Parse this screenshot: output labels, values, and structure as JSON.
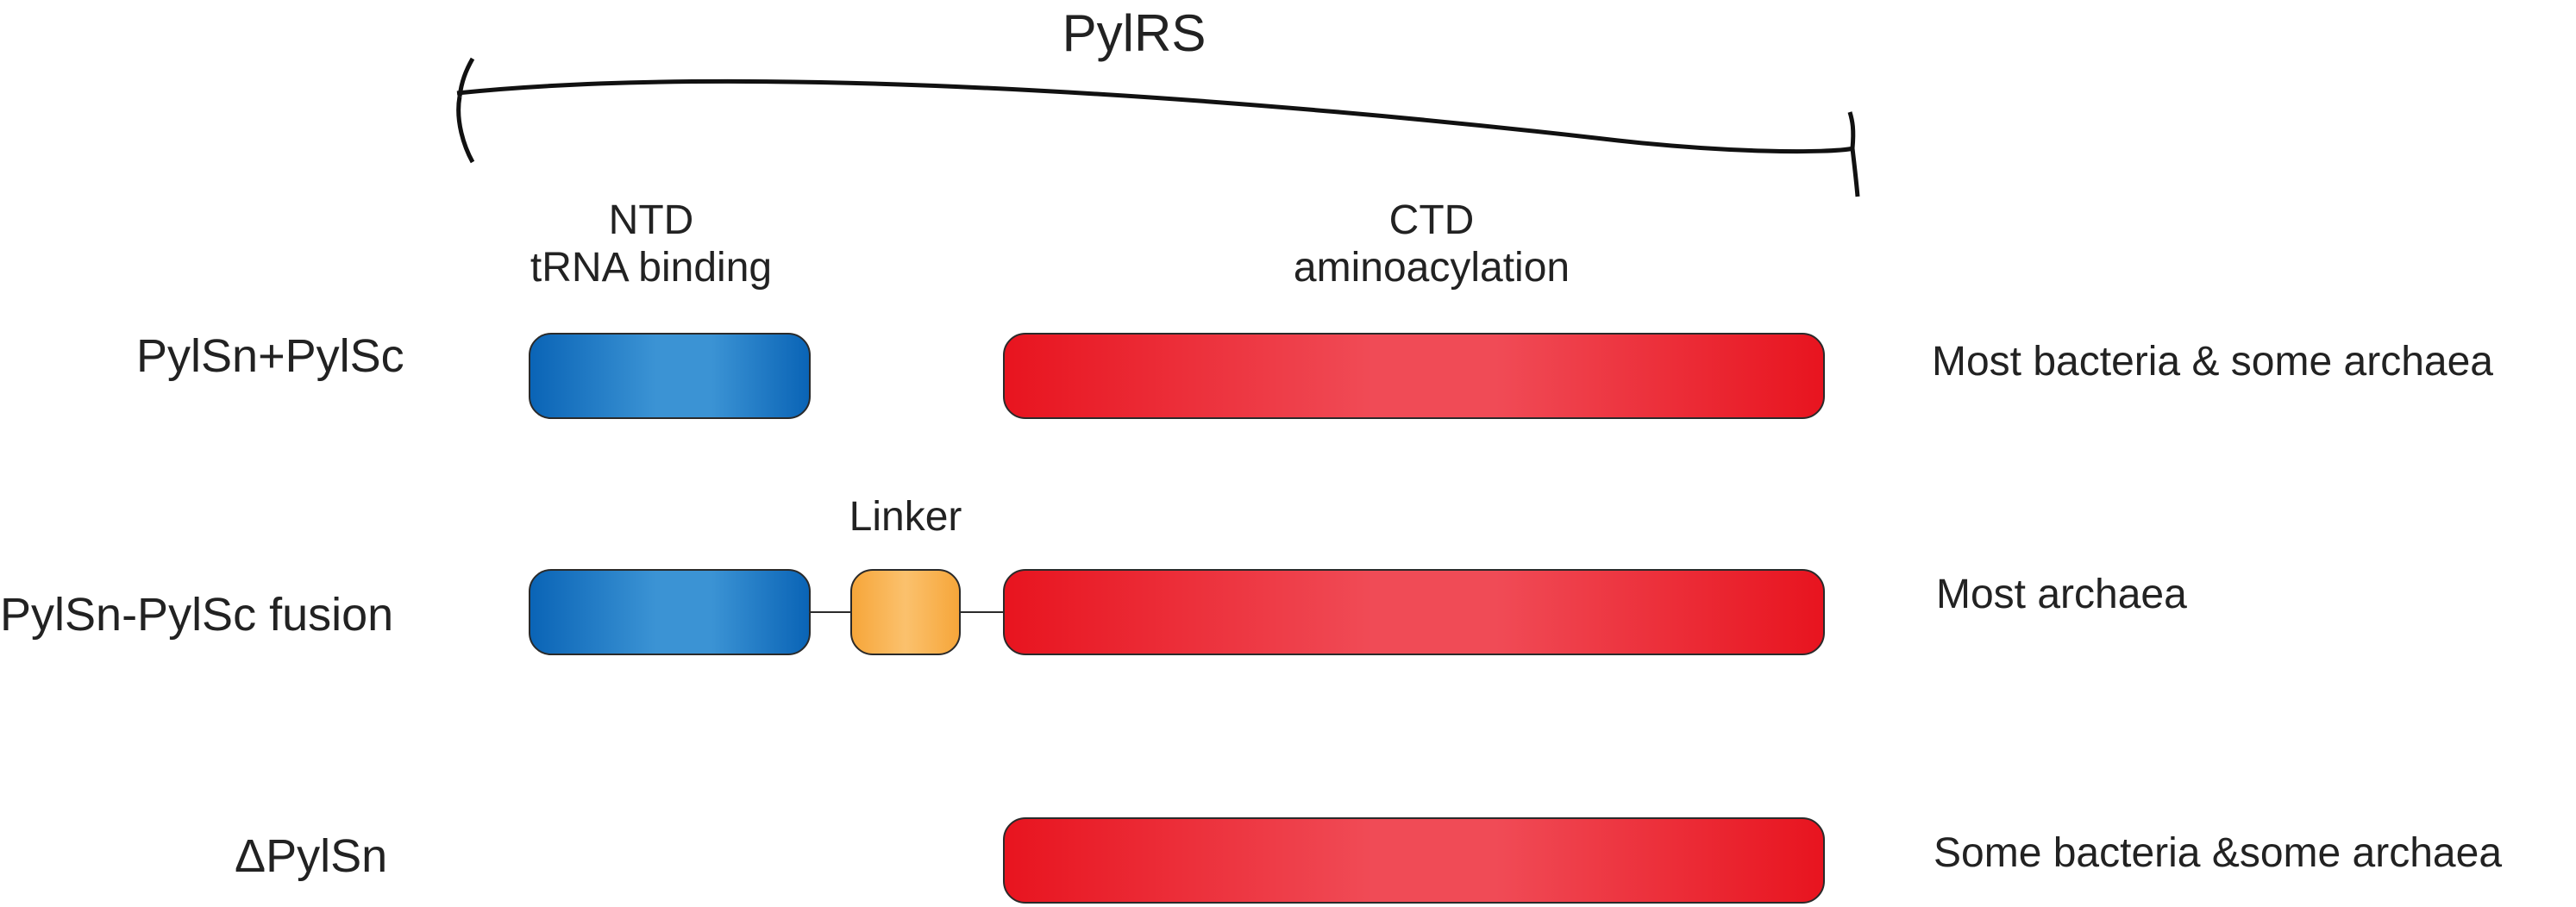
{
  "title": "PylRS",
  "domains": {
    "ntd_name": "NTD",
    "ntd_function": "tRNA binding",
    "ctd_name": "CTD",
    "ctd_function": "aminoacylation",
    "linker": "Linker"
  },
  "rows": [
    {
      "label": "PylSn+PylSc",
      "note": "Most bacteria & some archaea"
    },
    {
      "label": "PylSn-PylSc fusion",
      "note": "Most archaea"
    },
    {
      "label": "ΔPylSn",
      "note": "Some bacteria &some archaea"
    }
  ],
  "colors": {
    "ntd": "#1f7cc7",
    "ctd": "#ec2a35",
    "linker": "#f8b453"
  }
}
